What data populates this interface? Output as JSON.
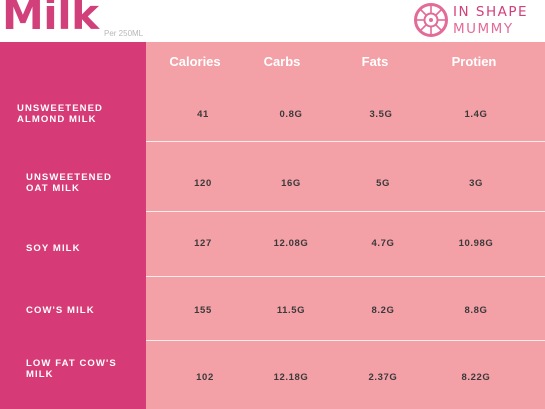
{
  "title": "Milk",
  "subtitle": "Per 250ML",
  "logo": {
    "line1": "IN SHAPE",
    "line2": "MUMMY"
  },
  "columns": [
    "Calories",
    "Carbs",
    "Fats",
    "Protien"
  ],
  "rows": [
    {
      "label": "UNSWEETENED\nALMOND MILK",
      "values": [
        "41",
        "0.8G",
        "3.5G",
        "1.4G"
      ]
    },
    {
      "label": "UNSWEETENED\nOAT MILK",
      "values": [
        "120",
        "16G",
        "5G",
        "3G"
      ]
    },
    {
      "label": "SOY MILK",
      "values": [
        "127",
        "12.08G",
        "4.7G",
        "10.98G"
      ]
    },
    {
      "label": "COW'S MILK",
      "values": [
        "155",
        "11.5G",
        "8.2G",
        "8.8G"
      ]
    },
    {
      "label": "LOW FAT COW'S\nMILK",
      "values": [
        "102",
        "12.18G",
        "2.37G",
        "8.22G"
      ]
    }
  ],
  "colors": {
    "title": "#d1407a",
    "label_column": "#d63b78",
    "table_body": "#f4a0a7",
    "logo_pink": "#e36b98"
  }
}
